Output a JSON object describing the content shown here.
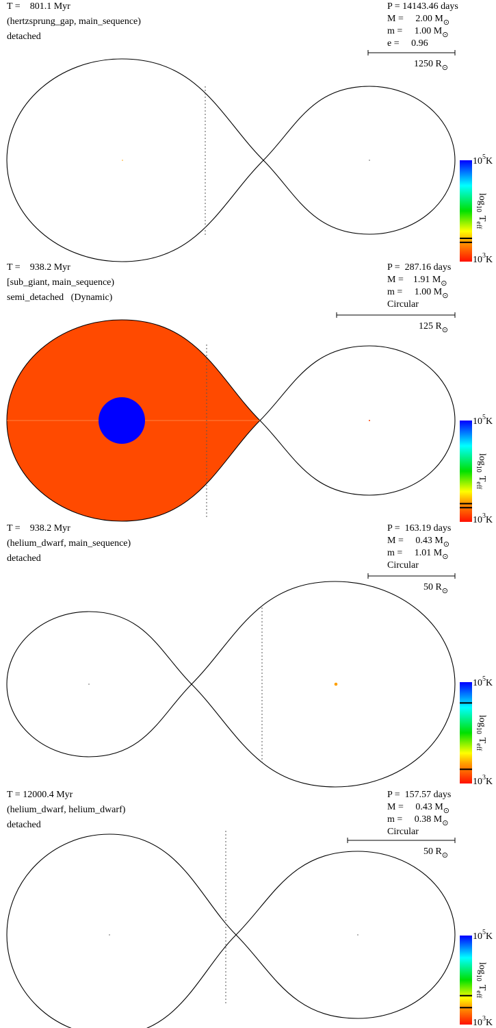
{
  "colorbar": {
    "top": {
      "text": "10",
      "sup": "5",
      "after": "K"
    },
    "bottom": {
      "text": "10",
      "sup": "3",
      "after": "K"
    },
    "title": {
      "text": "log",
      "sub": "10",
      "var": "T",
      "var_sub": "eff"
    },
    "log_range": [
      3,
      5
    ]
  },
  "panels": [
    {
      "time": "T =    801.1 Myr",
      "types": "(hertzsprung_gap, main_sequence)",
      "state": "detached",
      "info": [
        "P = 14143.46 days",
        {
          "text": "M =     2.00 M",
          "sub": "⊙"
        },
        {
          "text": "m =     1.00 M",
          "sub": "⊙"
        },
        "e =     0.96"
      ],
      "scale": {
        "text": "1250 R",
        "sub": "⊙"
      },
      "teff_markers": [
        3.46,
        3.38
      ]
    },
    {
      "time": "T =    938.2 Myr",
      "types": "[sub_giant, main_sequence)",
      "state": "semi_detached   (Dynamic)",
      "info": [
        "P =  287.16 days",
        {
          "text": "M =    1.91 M",
          "sub": "⊙"
        },
        {
          "text": "m =     1.00 M",
          "sub": "⊙"
        },
        "Circular"
      ],
      "scale": {
        "text": "125 R",
        "sub": "⊙"
      },
      "teff_markers": [
        3.36,
        3.28
      ]
    },
    {
      "time": "T =    938.2 Myr",
      "types": "(helium_dwarf, main_sequence)",
      "state": "detached",
      "info": [
        "P =  163.19 days",
        {
          "text": "M =     0.43 M",
          "sub": "⊙"
        },
        {
          "text": "m =     1.01 M",
          "sub": "⊙"
        },
        "Circular"
      ],
      "scale": {
        "text": "50 R",
        "sub": "⊙"
      },
      "teff_markers": [
        4.59,
        3.28
      ]
    },
    {
      "time": "T = 12000.4 Myr",
      "types": "(helium_dwarf, helium_dwarf)",
      "state": "detached",
      "info": [
        "P =  157.57 days",
        {
          "text": "M =     0.43 M",
          "sub": "⊙"
        },
        {
          "text": "m =     0.38 M",
          "sub": "⊙"
        },
        "Circular"
      ],
      "scale": {
        "text": "50 R",
        "sub": "⊙"
      },
      "teff_markers": [
        3.65,
        3.38
      ]
    }
  ]
}
